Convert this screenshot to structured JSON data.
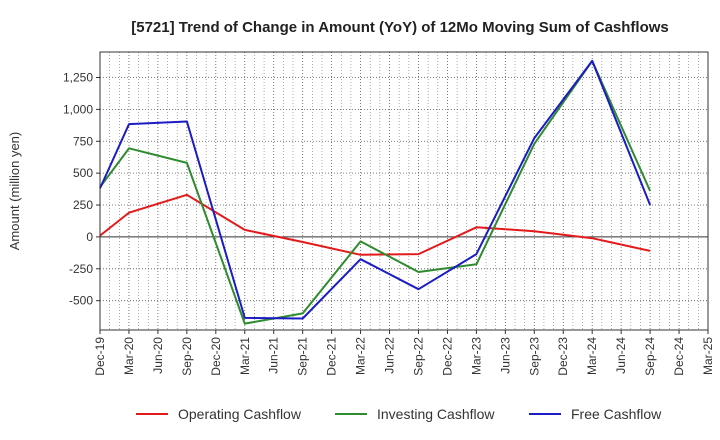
{
  "chart_data": {
    "type": "line",
    "title": "[5721]  Trend of Change in Amount (YoY) of 12Mo Moving Sum of Cashflows",
    "xlabel": "",
    "ylabel": "Amount (million yen)",
    "categories": [
      "Dec-19",
      "Mar-20",
      "Jun-20",
      "Sep-20",
      "Dec-20",
      "Mar-21",
      "Jun-21",
      "Sep-21",
      "Dec-21",
      "Mar-22",
      "Jun-22",
      "Sep-22",
      "Dec-22",
      "Mar-23",
      "Jun-23",
      "Sep-23",
      "Dec-23",
      "Mar-24",
      "Jun-24",
      "Sep-24",
      "Dec-24",
      "Mar-25"
    ],
    "ylim": [
      -730,
      1450
    ],
    "yticks": [
      -500,
      -250,
      0,
      250,
      500,
      750,
      1000,
      1250
    ],
    "ytick_labels": [
      "-500",
      "-250",
      "0",
      "250",
      "500",
      "750",
      "1,000",
      "1,250"
    ],
    "grid": true,
    "legend_position": "bottom",
    "series": [
      {
        "name": "Operating Cashflow",
        "color": "#e31a1c",
        "values": [
          10,
          190,
          null,
          330,
          null,
          55,
          null,
          -40,
          null,
          -140,
          null,
          -135,
          null,
          75,
          null,
          45,
          null,
          -10,
          null,
          -110,
          null,
          null
        ]
      },
      {
        "name": "Investing Cashflow",
        "color": "#2e8b2e",
        "values": [
          390,
          695,
          null,
          580,
          null,
          -680,
          null,
          -600,
          null,
          -35,
          null,
          -275,
          null,
          -215,
          null,
          730,
          null,
          1380,
          null,
          360,
          null,
          null
        ]
      },
      {
        "name": "Free Cashflow",
        "color": "#1c1cc4",
        "values": [
          380,
          885,
          null,
          905,
          null,
          -635,
          null,
          -640,
          null,
          -175,
          null,
          -410,
          null,
          -135,
          null,
          775,
          null,
          1380,
          null,
          250,
          null,
          null
        ]
      }
    ]
  }
}
